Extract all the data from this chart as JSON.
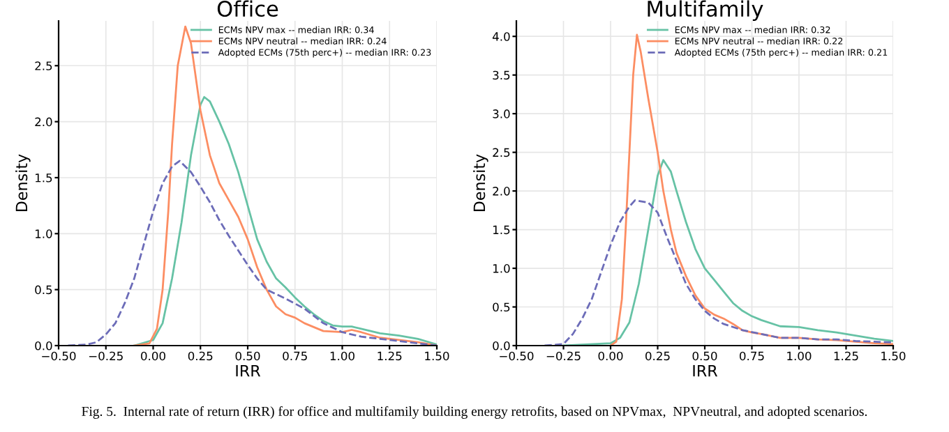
{
  "chart_data": [
    {
      "type": "line",
      "title": "Office",
      "xlabel": "IRR",
      "ylabel": "Density",
      "xlim": [
        -0.5,
        1.5
      ],
      "xticks": [
        {
          "value": -0.5,
          "label": "−0.50"
        },
        {
          "value": -0.25,
          "label": "−0.25"
        },
        {
          "value": 0,
          "label": "0.00"
        },
        {
          "value": 0.25,
          "label": "0.25"
        },
        {
          "value": 0.5,
          "label": "0.50"
        },
        {
          "value": 0.75,
          "label": "0.75"
        },
        {
          "value": 1,
          "label": "1.00"
        },
        {
          "value": 1.25,
          "label": "1.25"
        },
        {
          "value": 1.5,
          "label": "1.50"
        }
      ],
      "ylim": [
        0,
        2.9
      ],
      "yticks": [
        {
          "value": 0,
          "label": "0.0"
        },
        0.5,
        {
          "value": 1,
          "label": "1.0"
        },
        1.5,
        {
          "value": 2,
          "label": "2.0"
        },
        2.5
      ],
      "grid": true,
      "legend": "top right",
      "marker": "none",
      "annotations": [
        "Fig. 5.  Internal rate of return (IRR) for office and multifamily building energy retrofits, based on NPVmax,  NPVneutral, and adopted scenarios."
      ],
      "series": [
        {
          "name": "ECMs NPV max -- median IRR: 0.34",
          "color": "#66c2a5",
          "line_style": "solid",
          "x": [
            -0.1,
            0.0,
            0.05,
            0.1,
            0.15,
            0.2,
            0.25,
            0.27,
            0.3,
            0.35,
            0.4,
            0.45,
            0.5,
            0.55,
            0.6,
            0.65,
            0.7,
            0.75,
            0.8,
            0.85,
            0.9,
            0.95,
            1.0,
            1.05,
            1.1,
            1.2,
            1.3,
            1.4,
            1.5
          ],
          "values": [
            0,
            0.05,
            0.2,
            0.6,
            1.1,
            1.7,
            2.15,
            2.22,
            2.18,
            2.0,
            1.8,
            1.55,
            1.25,
            0.95,
            0.75,
            0.6,
            0.52,
            0.43,
            0.35,
            0.28,
            0.22,
            0.18,
            0.17,
            0.17,
            0.15,
            0.11,
            0.09,
            0.06,
            0.01
          ]
        },
        {
          "name": "ECMs NPV neutral -- median IRR: 0.24",
          "color": "#fc8d62",
          "line_style": "solid",
          "x": [
            -0.1,
            -0.02,
            0.02,
            0.05,
            0.08,
            0.1,
            0.13,
            0.17,
            0.2,
            0.25,
            0.3,
            0.35,
            0.4,
            0.45,
            0.5,
            0.55,
            0.6,
            0.65,
            0.7,
            0.75,
            0.8,
            0.9,
            1.0,
            1.05,
            1.1,
            1.2,
            1.3,
            1.4,
            1.5
          ],
          "values": [
            0,
            0.02,
            0.15,
            0.5,
            1.2,
            1.8,
            2.5,
            2.85,
            2.7,
            2.1,
            1.7,
            1.45,
            1.3,
            1.15,
            0.95,
            0.7,
            0.5,
            0.35,
            0.28,
            0.25,
            0.2,
            0.13,
            0.12,
            0.14,
            0.12,
            0.07,
            0.05,
            0.03,
            0
          ]
        },
        {
          "name": "Adopted ECMs (75th perc+) -- median IRR: 0.23",
          "color": "#6c6cb8",
          "line_style": "dashed",
          "x": [
            -0.45,
            -0.35,
            -0.3,
            -0.25,
            -0.2,
            -0.15,
            -0.1,
            -0.05,
            0.0,
            0.05,
            0.1,
            0.14,
            0.2,
            0.25,
            0.3,
            0.35,
            0.4,
            0.45,
            0.5,
            0.55,
            0.6,
            0.7,
            0.8,
            0.9,
            1.0,
            1.1,
            1.2,
            1.3,
            1.4,
            1.5
          ],
          "values": [
            0,
            0.01,
            0.03,
            0.1,
            0.2,
            0.38,
            0.6,
            0.9,
            1.2,
            1.45,
            1.6,
            1.65,
            1.55,
            1.42,
            1.28,
            1.12,
            0.98,
            0.85,
            0.72,
            0.6,
            0.5,
            0.42,
            0.33,
            0.2,
            0.12,
            0.08,
            0.06,
            0.04,
            0.02,
            0
          ]
        }
      ]
    },
    {
      "type": "line",
      "title": "Multifamily",
      "xlabel": "IRR",
      "ylabel": "Density",
      "xlim": [
        -0.5,
        1.5
      ],
      "xticks": [
        {
          "value": -0.5,
          "label": "−0.50"
        },
        {
          "value": -0.25,
          "label": "−0.25"
        },
        {
          "value": 0,
          "label": "0.00"
        },
        {
          "value": 0.25,
          "label": "0.25"
        },
        {
          "value": 0.5,
          "label": "0.50"
        },
        {
          "value": 0.75,
          "label": "0.75"
        },
        {
          "value": 1,
          "label": "1.00"
        },
        {
          "value": 1.25,
          "label": "1.25"
        },
        {
          "value": 1.5,
          "label": "1.50"
        }
      ],
      "ylim": [
        0,
        4.2
      ],
      "yticks": [
        {
          "value": 0,
          "label": "0.0"
        },
        0.5,
        {
          "value": 1,
          "label": "1.0"
        },
        1.5,
        {
          "value": 2,
          "label": "2.0"
        },
        2.5,
        {
          "value": 3,
          "label": "3.0"
        },
        3.5,
        {
          "value": 4,
          "label": "4.0"
        }
      ],
      "grid": true,
      "legend": "top right",
      "marker": "none",
      "series": [
        {
          "name": "ECMs NPV max -- median IRR: 0.32",
          "color": "#66c2a5",
          "line_style": "solid",
          "x": [
            -0.25,
            0.0,
            0.05,
            0.1,
            0.15,
            0.2,
            0.25,
            0.28,
            0.32,
            0.35,
            0.4,
            0.45,
            0.5,
            0.55,
            0.6,
            0.65,
            0.7,
            0.75,
            0.8,
            0.9,
            1.0,
            1.1,
            1.2,
            1.3,
            1.4,
            1.5
          ],
          "values": [
            0,
            0.03,
            0.1,
            0.3,
            0.8,
            1.5,
            2.2,
            2.4,
            2.25,
            2.0,
            1.6,
            1.25,
            1.0,
            0.85,
            0.7,
            0.55,
            0.45,
            0.38,
            0.33,
            0.25,
            0.24,
            0.2,
            0.17,
            0.13,
            0.09,
            0.06
          ]
        },
        {
          "name": "ECMs NPV neutral -- median IRR: 0.22",
          "color": "#fc8d62",
          "line_style": "solid",
          "x": [
            0.0,
            0.03,
            0.06,
            0.08,
            0.1,
            0.12,
            0.14,
            0.16,
            0.2,
            0.25,
            0.28,
            0.32,
            0.35,
            0.4,
            0.45,
            0.5,
            0.55,
            0.6,
            0.65,
            0.7,
            0.75,
            0.8,
            0.9,
            1.0,
            1.1,
            1.2,
            1.3,
            1.4,
            1.5
          ],
          "values": [
            0,
            0.05,
            0.6,
            1.5,
            2.5,
            3.5,
            4.02,
            3.8,
            3.2,
            2.5,
            2.0,
            1.5,
            1.2,
            0.9,
            0.65,
            0.48,
            0.4,
            0.35,
            0.28,
            0.2,
            0.17,
            0.15,
            0.1,
            0.1,
            0.08,
            0.07,
            0.05,
            0.03,
            0.02
          ]
        },
        {
          "name": "Adopted ECMs (75th perc+) -- median IRR: 0.21",
          "color": "#6c6cb8",
          "line_style": "dashed",
          "x": [
            -0.35,
            -0.25,
            -0.2,
            -0.15,
            -0.1,
            -0.05,
            0.0,
            0.05,
            0.1,
            0.13,
            0.2,
            0.25,
            0.3,
            0.35,
            0.4,
            0.45,
            0.5,
            0.55,
            0.6,
            0.7,
            0.8,
            0.9,
            1.0,
            1.1,
            1.2,
            1.3,
            1.4,
            1.5
          ],
          "values": [
            0,
            0.02,
            0.15,
            0.35,
            0.6,
            0.95,
            1.3,
            1.6,
            1.8,
            1.88,
            1.85,
            1.72,
            1.4,
            1.1,
            0.8,
            0.6,
            0.45,
            0.35,
            0.28,
            0.2,
            0.15,
            0.1,
            0.1,
            0.08,
            0.08,
            0.06,
            0.05,
            0.04
          ]
        }
      ]
    }
  ]
}
